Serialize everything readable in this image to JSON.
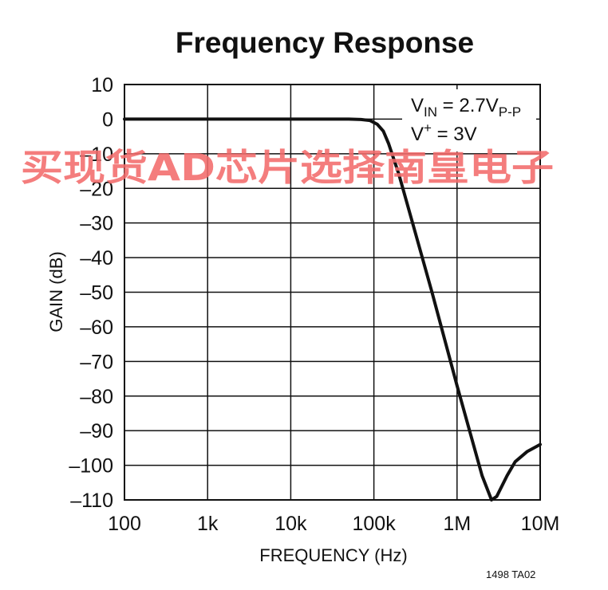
{
  "chart_data": {
    "type": "line",
    "title": "Frequency Response",
    "xlabel": "FREQUENCY (Hz)",
    "ylabel": "GAIN (dB)",
    "x_scale": "log",
    "xlim": [
      100,
      10000000
    ],
    "ylim": [
      -110,
      10
    ],
    "x_ticks": [
      {
        "value": 100,
        "label": "100"
      },
      {
        "value": 1000,
        "label": "1k"
      },
      {
        "value": 10000,
        "label": "10k"
      },
      {
        "value": 100000,
        "label": "100k"
      },
      {
        "value": 1000000,
        "label": "1M"
      },
      {
        "value": 10000000,
        "label": "10M"
      }
    ],
    "y_ticks": [
      {
        "value": 10,
        "label": "10"
      },
      {
        "value": 0,
        "label": "0"
      },
      {
        "value": -10,
        "label": "–10"
      },
      {
        "value": -20,
        "label": "–20"
      },
      {
        "value": -30,
        "label": "–30"
      },
      {
        "value": -40,
        "label": "–40"
      },
      {
        "value": -50,
        "label": "–50"
      },
      {
        "value": -60,
        "label": "–60"
      },
      {
        "value": -70,
        "label": "–70"
      },
      {
        "value": -80,
        "label": "–80"
      },
      {
        "value": -90,
        "label": "–90"
      },
      {
        "value": -100,
        "label": "–100"
      },
      {
        "value": -110,
        "label": "–110"
      }
    ],
    "grid": true,
    "series": [
      {
        "x": [
          100,
          1000,
          10000,
          50000,
          70000,
          90000,
          110000,
          130000,
          150000,
          200000,
          300000,
          500000,
          1000000,
          2000000,
          2600000,
          3000000,
          4000000,
          5000000,
          7000000,
          10000000
        ],
        "y": [
          0,
          0,
          0,
          0,
          -0.1,
          -0.4,
          -1.5,
          -3.5,
          -7,
          -16,
          -31,
          -50,
          -77,
          -103,
          -110,
          -109,
          -103,
          -99,
          -96,
          -94
        ]
      }
    ],
    "annotations": [
      {
        "main": "V",
        "sub": "IN",
        "rest": " = 2.7V",
        "sub2": "P-P"
      },
      {
        "main": "V",
        "sup": "+",
        "rest": " = 3V"
      }
    ]
  },
  "figure_code": "1498 TA02",
  "watermark": "买现货AD芯片选择南皇电子",
  "colors": {
    "line": "#111111",
    "grid": "#111111",
    "watermark": "#f26b6b"
  }
}
